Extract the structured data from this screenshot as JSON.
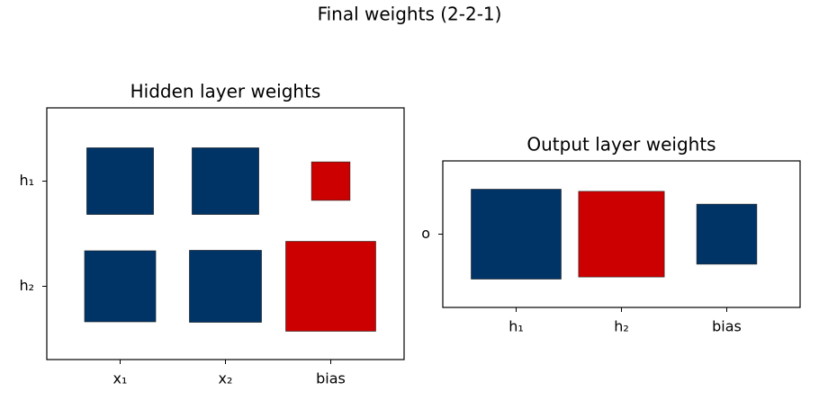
{
  "title": "Final weights (2-2-1)",
  "chart_data": [
    {
      "type": "hinton",
      "title": "Hidden layer weights",
      "rows": [
        "h₁",
        "h₂"
      ],
      "columns": [
        "x₁",
        "x₂",
        "bias"
      ],
      "values": [
        [
          3.3,
          3.3,
          -1.1
        ],
        [
          3.75,
          3.85,
          -6.0
        ]
      ],
      "positive_color": "#003366",
      "negative_color": "#cc0000"
    },
    {
      "type": "hinton",
      "title": "Output layer weights",
      "rows": [
        "o"
      ],
      "columns": [
        "h₁",
        "h₂",
        "bias"
      ],
      "values": [
        [
          6.5,
          -5.9,
          2.9
        ]
      ],
      "positive_color": "#003366",
      "negative_color": "#cc0000"
    }
  ]
}
